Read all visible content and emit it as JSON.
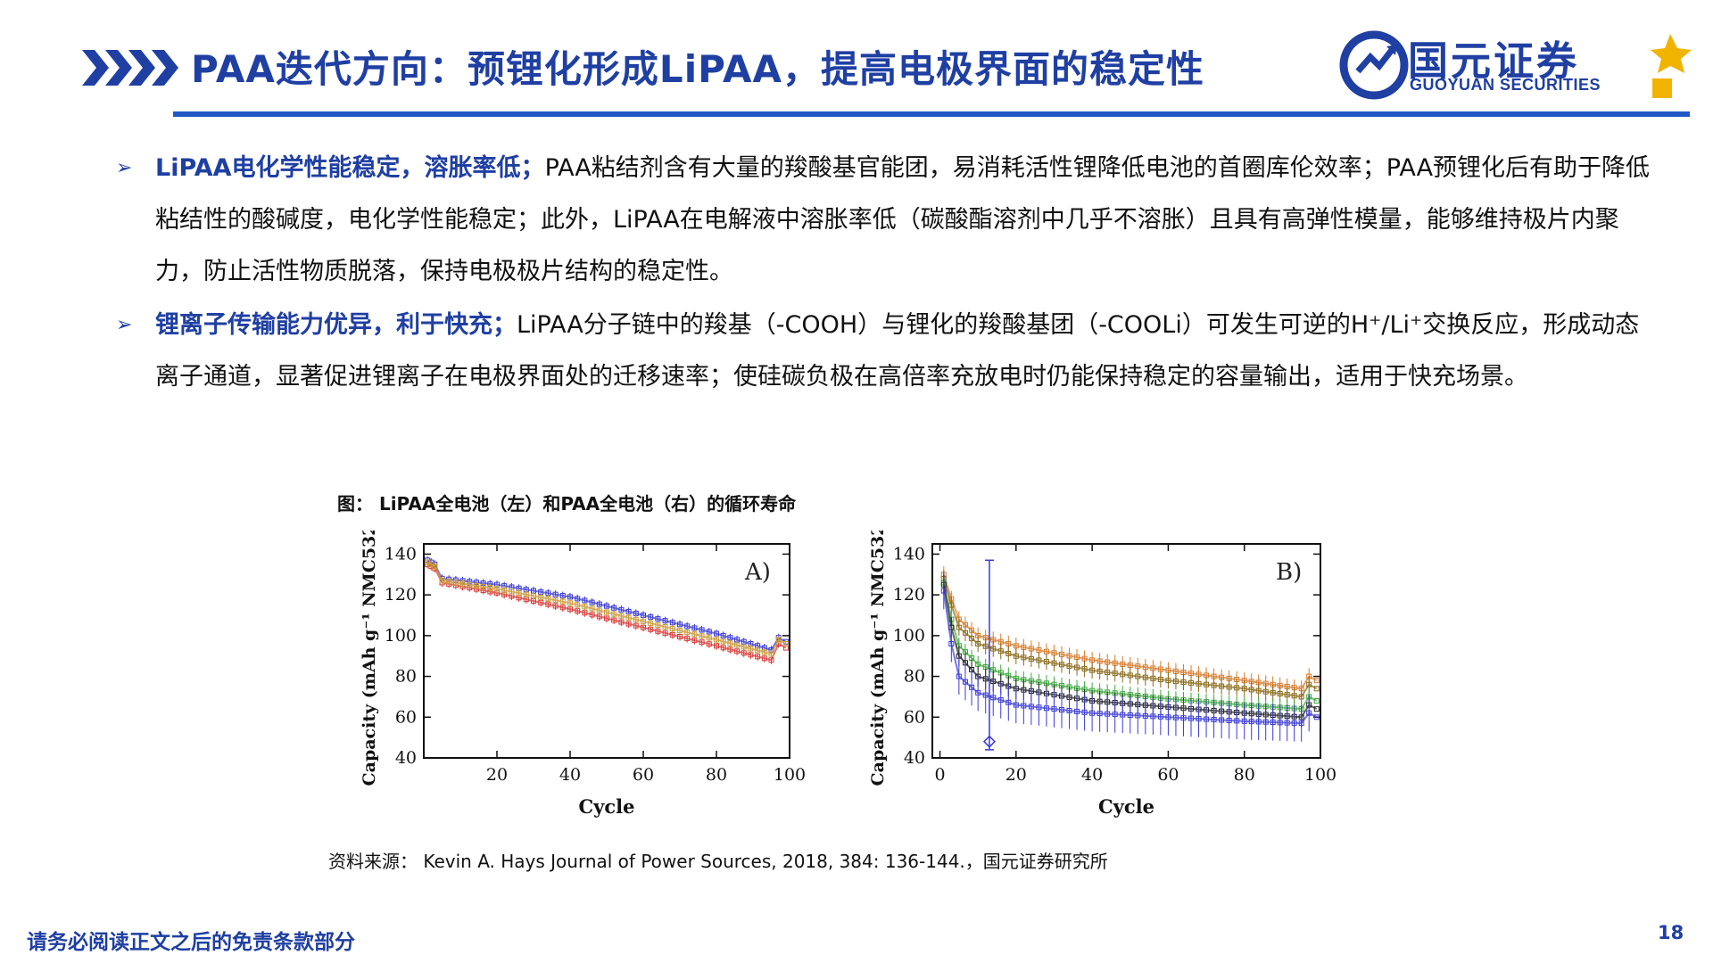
{
  "header": {
    "title": "PAA迭代方向：预锂化形成LiPAA，提高电极界面的稳定性",
    "logo_cn": "国元证券",
    "logo_en": "GUOYUAN SECURITIES"
  },
  "bullets": [
    {
      "lead": "LiPAA电化学性能稳定，溶胀率低；",
      "text": "PAA粘结剂含有大量的羧酸基官能团，易消耗活性锂降低电池的首圈库伦效率；PAA预锂化后有助于降低粘结性的酸碱度，电化学性能稳定；此外，LiPAA在电解液中溶胀率低（碳酸酯溶剂中几乎不溶胀）且具有高弹性模量，能够维持极片内聚力，防止活性物质脱落，保持电极极片结构的稳定性。"
    },
    {
      "lead": "锂离子传输能力优异，利于快充；",
      "text": "LiPAA分子链中的羧基（-COOH）与锂化的羧酸基团（-COOLi）可发生可逆的H⁺/Li⁺交换反应，形成动态离子通道，显著促进锂离子在电极界面处的迁移速率；使硅碳负极在高倍率充放电时仍能保持稳定的容量输出，适用于快充场景。"
    }
  ],
  "figure": {
    "caption": "图： LiPAA全电池（左）和PAA全电池（右）的循环寿命"
  },
  "chart_data": [
    {
      "type": "scatter",
      "panel_label": "A)",
      "xlabel": "Cycle",
      "ylabel": "Capacity (mAh g⁻¹ NMC532)",
      "xlim": [
        0,
        100
      ],
      "ylim": [
        40,
        145
      ],
      "xticks": [
        20,
        40,
        60,
        80,
        100
      ],
      "yticks": [
        40,
        60,
        80,
        100,
        120,
        140
      ],
      "series": [
        {
          "color": "#3a3ad8",
          "x": [
            1,
            2,
            3,
            5,
            20,
            40,
            60,
            80,
            95,
            97,
            99
          ],
          "y": [
            137,
            136,
            135,
            128,
            125,
            119,
            110,
            101,
            93,
            99,
            97
          ]
        },
        {
          "color": "#d83a3a",
          "x": [
            1,
            2,
            3,
            5,
            20,
            40,
            60,
            80,
            95,
            97,
            99
          ],
          "y": [
            135,
            134,
            133,
            126,
            121,
            113,
            104,
            95,
            88,
            96,
            94
          ]
        },
        {
          "color": "#c99a3a",
          "x": [
            1,
            2,
            3,
            5,
            20,
            40,
            60,
            80,
            95,
            97,
            99
          ],
          "y": [
            136,
            135,
            134,
            127,
            123,
            116,
            107,
            98,
            91,
            98,
            96
          ]
        }
      ]
    },
    {
      "type": "scatter",
      "panel_label": "B)",
      "xlabel": "Cycle",
      "ylabel": "Capacity (mAh g⁻¹ NMC532)",
      "xlim": [
        -2,
        100
      ],
      "ylim": [
        40,
        145
      ],
      "xticks": [
        0,
        20,
        40,
        60,
        80,
        100
      ],
      "yticks": [
        40,
        60,
        80,
        100,
        120,
        140
      ],
      "series": [
        {
          "color": "#d87a2a",
          "x": [
            1,
            3,
            5,
            10,
            20,
            40,
            60,
            80,
            95,
            97,
            99
          ],
          "y": [
            130,
            118,
            108,
            100,
            95,
            88,
            83,
            78,
            74,
            80,
            78
          ]
        },
        {
          "color": "#8a6a1a",
          "x": [
            1,
            3,
            5,
            10,
            20,
            40,
            60,
            80,
            95,
            97,
            99
          ],
          "y": [
            128,
            115,
            104,
            96,
            90,
            83,
            78,
            74,
            70,
            76,
            74
          ]
        },
        {
          "color": "#3aa83a",
          "x": [
            1,
            3,
            5,
            10,
            20,
            40,
            60,
            80,
            95,
            97,
            99
          ],
          "y": [
            126,
            108,
            95,
            86,
            79,
            73,
            69,
            66,
            64,
            70,
            68
          ]
        },
        {
          "color": "#222222",
          "x": [
            1,
            3,
            5,
            10,
            20,
            40,
            60,
            80,
            95,
            97,
            99
          ],
          "y": [
            125,
            104,
            90,
            80,
            74,
            68,
            65,
            62,
            60,
            66,
            64
          ]
        },
        {
          "color": "#3a3ad8",
          "x": [
            1,
            3,
            5,
            10,
            20,
            40,
            60,
            80,
            95,
            97,
            99
          ],
          "y": [
            122,
            96,
            80,
            72,
            66,
            62,
            60,
            58,
            57,
            62,
            60
          ]
        }
      ]
    }
  ],
  "source": "资料来源： Kevin A. Hays Journal of Power Sources, 2018, 384: 136-144.，国元证券研究所",
  "footer": {
    "note": "请务必阅读正文之后的免责条款部分",
    "page": "18"
  },
  "colors": {
    "brand_blue": "#1f3fa3",
    "rule_blue": "#1f57c6",
    "logo_gold": "#f0b400"
  }
}
